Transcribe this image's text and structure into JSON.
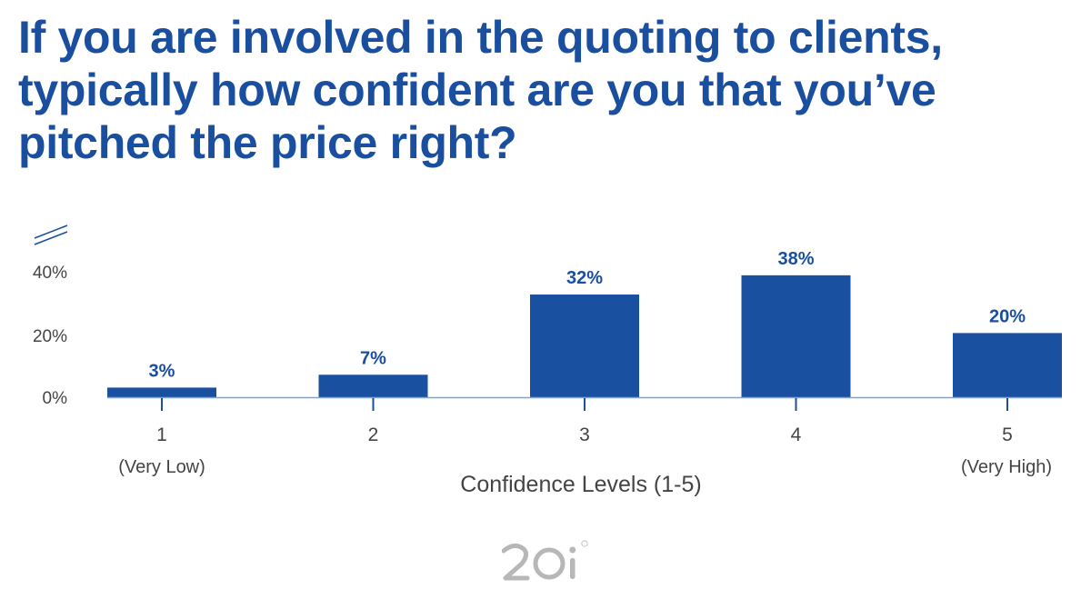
{
  "title": "If you are involved in the quoting to clients, typically how confident are you that you’ve pitched the price right?",
  "colors": {
    "bar": "#1a50a0",
    "title": "#1a4fa0",
    "axis_line": "#7ea3cc",
    "text": "#444444",
    "logo": "#b7b7b7"
  },
  "chart_data": {
    "type": "bar",
    "categories": [
      "1",
      "2",
      "3",
      "4",
      "5"
    ],
    "category_sublabels": [
      "(Very Low)",
      "",
      "",
      "",
      "(Very High)"
    ],
    "values": [
      3,
      7,
      32,
      38,
      20
    ],
    "data_labels": [
      "3%",
      "7%",
      "32%",
      "38%",
      "20%"
    ],
    "xlabel": "Confidence Levels (1-5)",
    "ylabel": "",
    "y_ticks": [
      0,
      20,
      40
    ],
    "y_tick_labels": [
      "0%",
      "20%",
      "40%"
    ],
    "y_axis_break": true,
    "grid": false,
    "legend": "none"
  },
  "logo": {
    "text": "20i",
    "registered_mark": "®"
  }
}
